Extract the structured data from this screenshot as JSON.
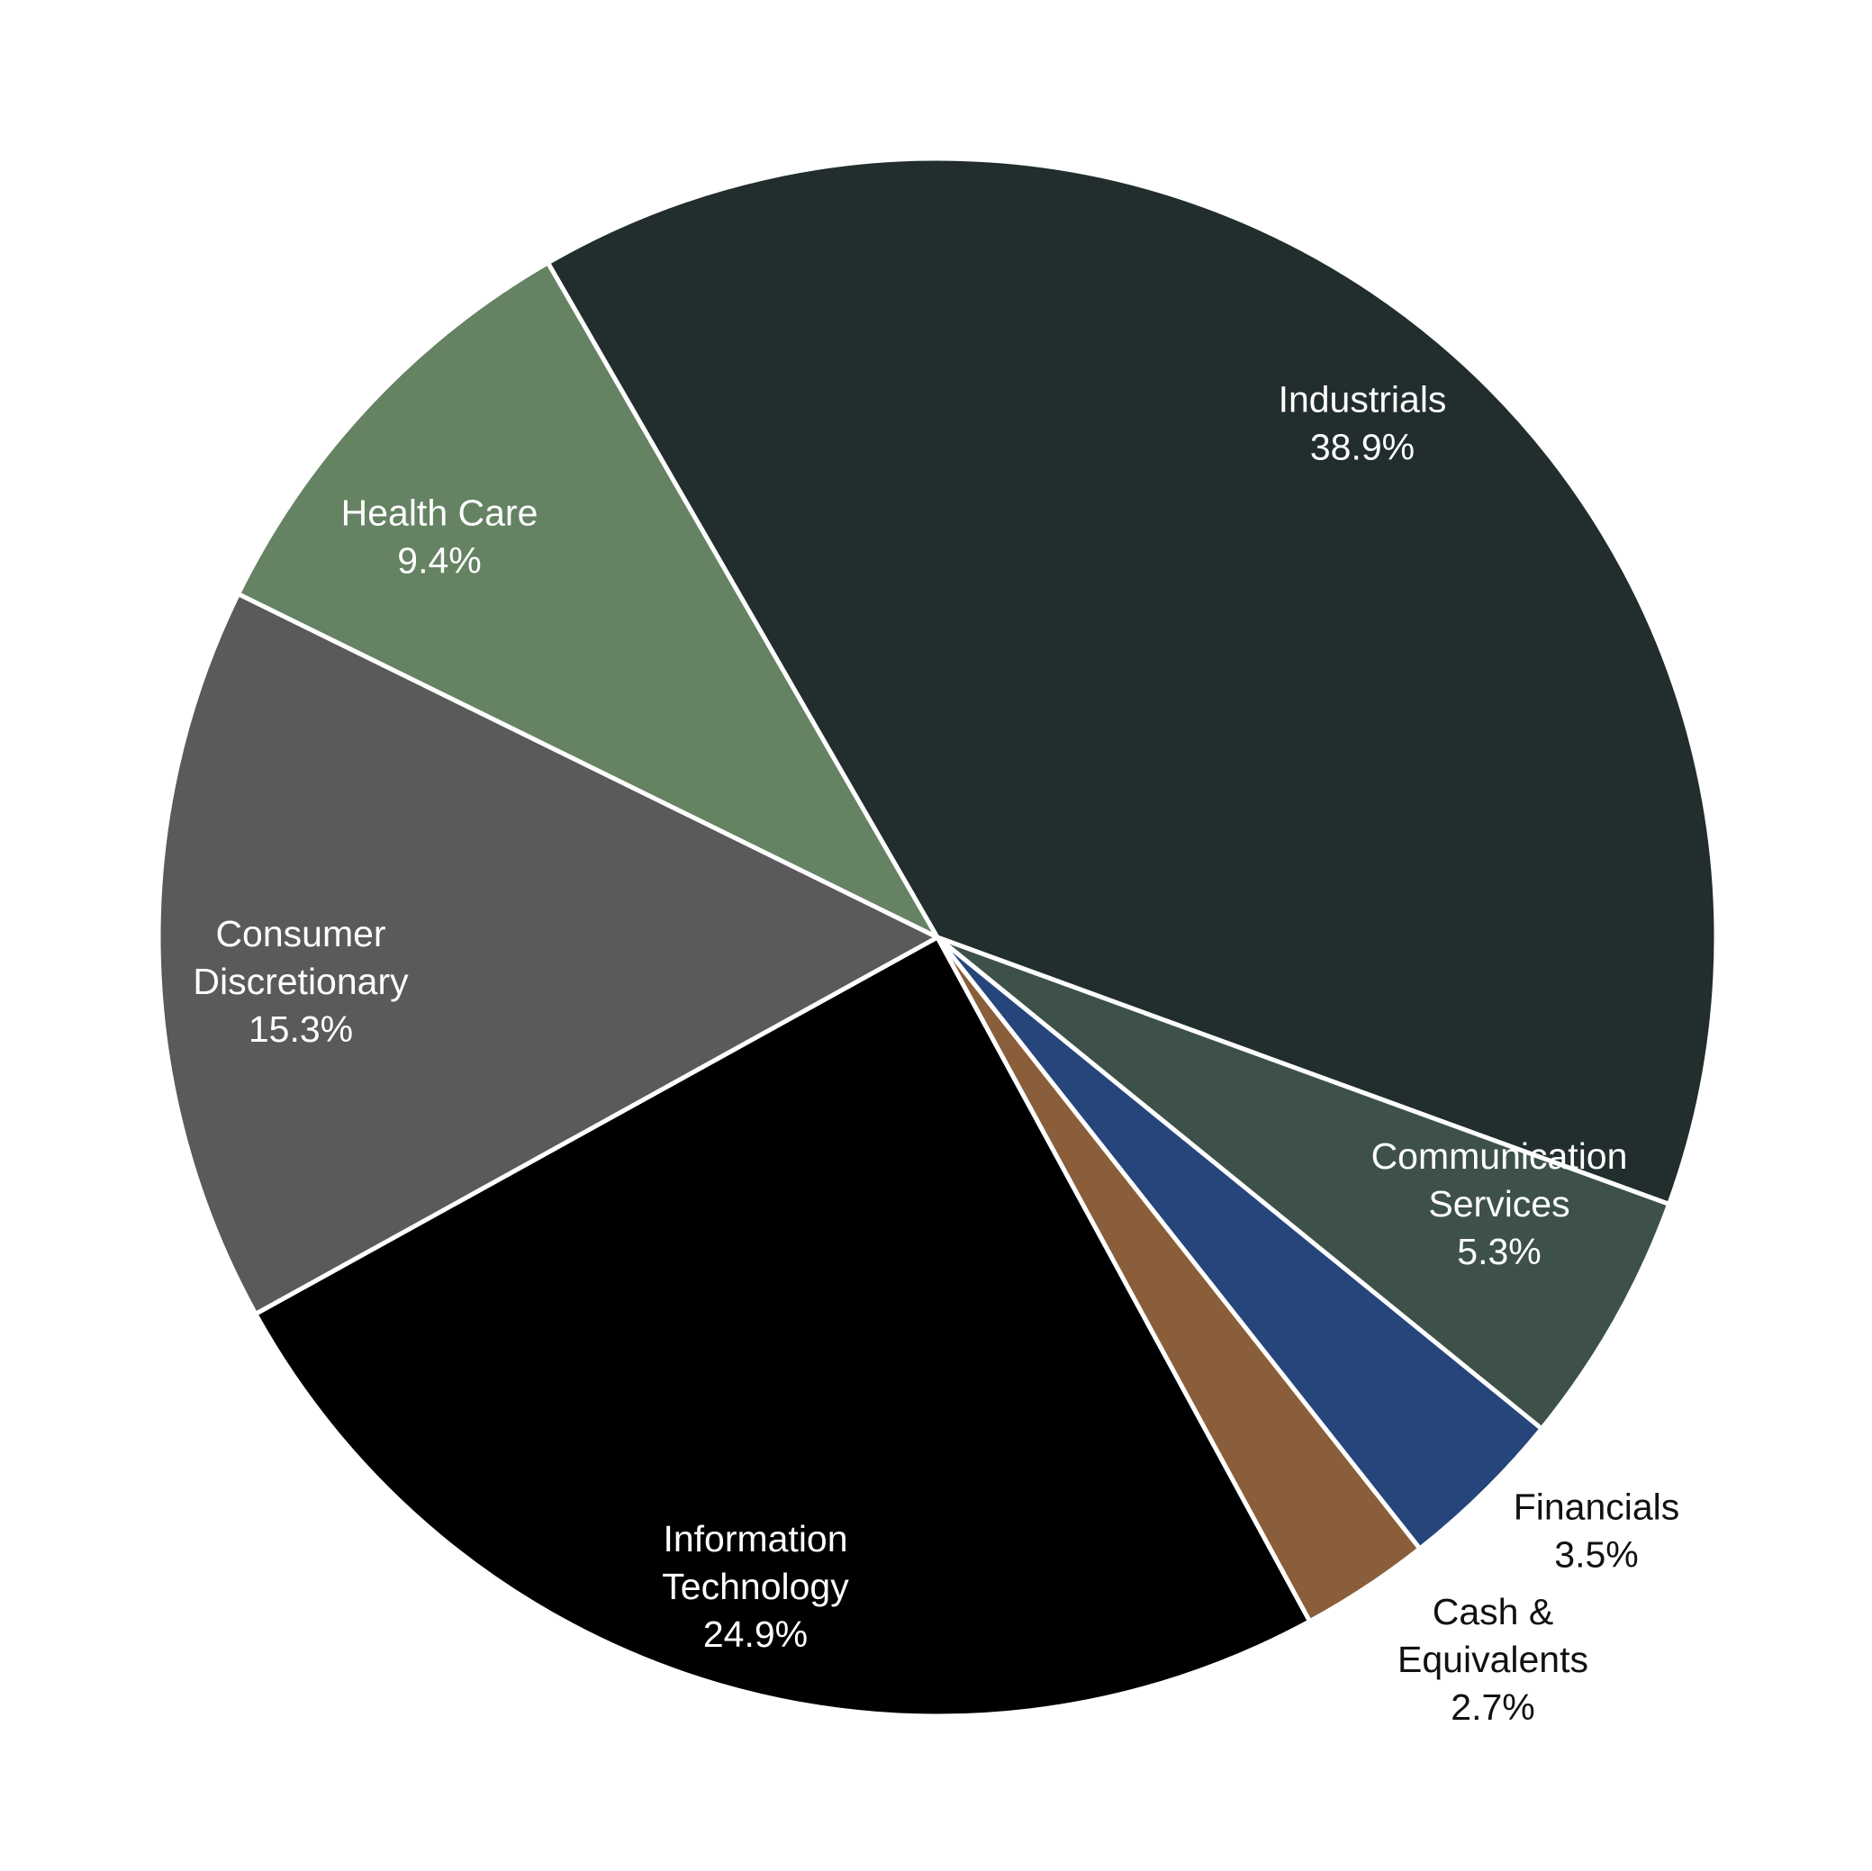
{
  "chart_data": {
    "type": "pie",
    "title": "",
    "start_angle_deg": 330,
    "direction": "clockwise",
    "slices": [
      {
        "label_lines": [
          "Industrials",
          "38.9%"
        ],
        "value": 38.9,
        "color": "#222d2d",
        "label_color": "#ffffff",
        "label_inside": true
      },
      {
        "label_lines": [
          "Communication",
          "Services",
          "5.3%"
        ],
        "value": 5.3,
        "color": "#3d5149",
        "label_color": "#ffffff",
        "label_inside": true
      },
      {
        "label_lines": [
          "Financials",
          "3.5%"
        ],
        "value": 3.5,
        "color": "#26457b",
        "label_color": "#111111",
        "label_inside": false
      },
      {
        "label_lines": [
          "Cash &",
          "Equivalents",
          "2.7%"
        ],
        "value": 2.7,
        "color": "#8a5e3a",
        "label_color": "#111111",
        "label_inside": false
      },
      {
        "label_lines": [
          "Information",
          "Technology",
          "24.9%"
        ],
        "value": 24.9,
        "color": "#000000",
        "label_color": "#ffffff",
        "label_inside": true
      },
      {
        "label_lines": [
          "Consumer",
          "Discretionary",
          "15.3%"
        ],
        "value": 15.3,
        "color": "#5a5a5a",
        "label_color": "#ffffff",
        "label_inside": true
      },
      {
        "label_lines": [
          "Health Care",
          "9.4%"
        ],
        "value": 9.4,
        "color": "#658263",
        "label_color": "#ffffff",
        "label_inside": true
      }
    ]
  }
}
